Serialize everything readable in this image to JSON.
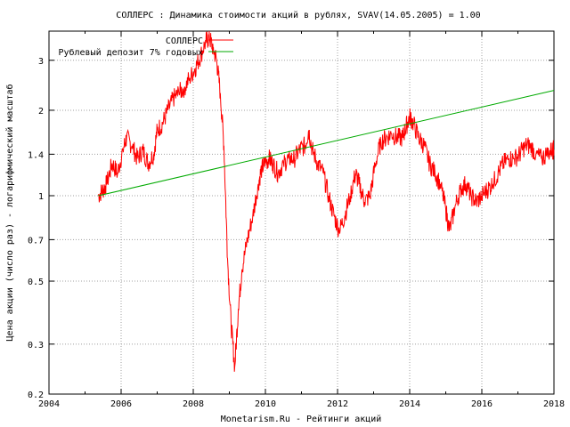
{
  "chart_data": {
    "type": "line",
    "title": "СОЛЛЕРС : Динамика стоимости акций в рублях, SVAV(14.05.2005) = 1.00",
    "xlabel": "Monetarism.Ru - Рейтинги акций",
    "ylabel": "Цена акции (число раз) - логарифмический масштаб",
    "xlim": [
      2004,
      2018
    ],
    "ylim": [
      0.2,
      3.8
    ],
    "yscale": "log",
    "grid": true,
    "legend_position": "top-left",
    "x_ticks": [
      "2004",
      "2006",
      "2008",
      "2010",
      "2012",
      "2014",
      "2016",
      "2018"
    ],
    "x_tick_values": [
      2004,
      2006,
      2008,
      2010,
      2012,
      2014,
      2016,
      2018
    ],
    "y_ticks": [
      "0.2",
      "0.3",
      "0.5",
      "0.7",
      "1",
      "1.4",
      "2",
      "3"
    ],
    "y_tick_values": [
      0.2,
      0.3,
      0.5,
      0.7,
      1,
      1.4,
      2,
      3
    ],
    "series": [
      {
        "name": "СОЛЛЕРС",
        "color": "#ff0000",
        "x": [
          2005.37,
          2005.5,
          2005.6,
          2005.75,
          2005.9,
          2006.05,
          2006.15,
          2006.3,
          2006.45,
          2006.6,
          2006.75,
          2006.9,
          2007.0,
          2007.15,
          2007.3,
          2007.45,
          2007.6,
          2007.75,
          2007.9,
          2008.05,
          2008.2,
          2008.35,
          2008.45,
          2008.55,
          2008.65,
          2008.75,
          2008.85,
          2008.95,
          2009.05,
          2009.15,
          2009.25,
          2009.35,
          2009.5,
          2009.65,
          2009.8,
          2009.9,
          2010.0,
          2010.1,
          2010.2,
          2010.35,
          2010.5,
          2010.65,
          2010.8,
          2010.95,
          2011.1,
          2011.2,
          2011.3,
          2011.45,
          2011.6,
          2011.75,
          2011.9,
          2012.05,
          2012.2,
          2012.35,
          2012.5,
          2012.6,
          2012.75,
          2012.9,
          2013.05,
          2013.2,
          2013.35,
          2013.5,
          2013.65,
          2013.8,
          2013.9,
          2014.0,
          2014.1,
          2014.25,
          2014.4,
          2014.55,
          2014.7,
          2014.85,
          2015.0,
          2015.1,
          2015.25,
          2015.4,
          2015.55,
          2015.7,
          2015.85,
          2016.0,
          2016.15,
          2016.3,
          2016.45,
          2016.6,
          2016.75,
          2016.9,
          2017.05,
          2017.2,
          2017.35,
          2017.5,
          2017.65,
          2017.8,
          2017.95,
          2018.0
        ],
        "values": [
          1.0,
          1.05,
          1.1,
          1.3,
          1.2,
          1.45,
          1.6,
          1.5,
          1.35,
          1.45,
          1.3,
          1.4,
          1.7,
          1.8,
          2.0,
          2.2,
          2.3,
          2.4,
          2.6,
          2.8,
          3.1,
          3.5,
          3.6,
          3.3,
          3.0,
          2.3,
          1.5,
          0.6,
          0.35,
          0.25,
          0.4,
          0.55,
          0.7,
          0.85,
          1.1,
          1.25,
          1.3,
          1.35,
          1.3,
          1.2,
          1.3,
          1.35,
          1.35,
          1.45,
          1.5,
          1.7,
          1.45,
          1.3,
          1.2,
          1.0,
          0.85,
          0.75,
          0.85,
          1.0,
          1.2,
          1.1,
          0.95,
          1.0,
          1.3,
          1.55,
          1.6,
          1.65,
          1.6,
          1.6,
          1.75,
          1.9,
          1.8,
          1.6,
          1.5,
          1.3,
          1.2,
          1.1,
          0.9,
          0.75,
          0.9,
          1.05,
          1.1,
          1.0,
          0.95,
          1.0,
          1.05,
          1.1,
          1.2,
          1.3,
          1.35,
          1.35,
          1.4,
          1.5,
          1.5,
          1.4,
          1.35,
          1.4,
          1.45,
          1.45
        ]
      },
      {
        "name": "Рублевый депозит 7% годовых",
        "color": "#00aa00",
        "x": [
          2005.37,
          2018.0
        ],
        "values": [
          1.0,
          2.35
        ]
      }
    ]
  }
}
